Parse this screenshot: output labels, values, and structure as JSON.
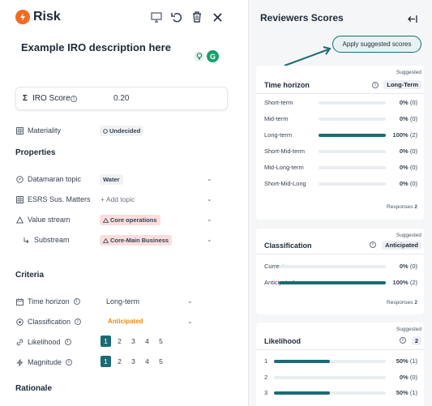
{
  "header": {
    "title": "Risk",
    "icons": [
      "monitor-icon",
      "undo-icon",
      "trash-icon",
      "close-icon"
    ]
  },
  "iro_description": "Example IRO description here",
  "iro_score": {
    "label": "IRO Score",
    "symbol": "Σ",
    "value": "0.20"
  },
  "materiality": {
    "label": "Materiality",
    "value": "Undecided"
  },
  "properties": {
    "title": "Properties",
    "datamaran_topic": {
      "label": "Datamaran topic",
      "value": "Water"
    },
    "esrs": {
      "label": "ESRS Sus. Matters",
      "value": "+ Add topic"
    },
    "value_stream": {
      "label": "Value stream",
      "value": "Core operations"
    },
    "substream": {
      "label": "Substream",
      "value": "Core-Main Business"
    }
  },
  "criteria": {
    "title": "Criteria",
    "time_horizon": {
      "label": "Time horizon",
      "value": "Long-term"
    },
    "classification": {
      "label": "Classification",
      "value": "Anticipated"
    },
    "likelihood": {
      "label": "Likelihood",
      "options": [
        "1",
        "2",
        "3",
        "4",
        "5"
      ],
      "selected": "1"
    },
    "magnitude": {
      "label": "Magnitude",
      "options": [
        "1",
        "2",
        "3",
        "4",
        "5"
      ],
      "selected": "1"
    }
  },
  "rationale_title": "Rationale",
  "reviewers": {
    "title": "Reviewers Scores",
    "apply_label": "Apply suggested scores",
    "suggested_label": "Suggested",
    "responses_label": "Responses",
    "cards": [
      {
        "title": "Time horizon",
        "suggested": "Long-Term",
        "responses": "2",
        "rows": [
          {
            "label": "Short-term",
            "pct": "0%",
            "count": "(0)",
            "fill": 0
          },
          {
            "label": "Mid-term",
            "pct": "0%",
            "count": "(0)",
            "fill": 0
          },
          {
            "label": "Long-term",
            "pct": "100%",
            "count": "(2)",
            "fill": 1
          },
          {
            "label": "Short-Mid-term",
            "pct": "0%",
            "count": "(0)",
            "fill": 0
          },
          {
            "label": "Mid-Long-term",
            "pct": "0%",
            "count": "(0)",
            "fill": 0
          },
          {
            "label": "Short-Mid-Long",
            "pct": "0%",
            "count": "(0)",
            "fill": 0
          }
        ]
      },
      {
        "title": "Classification",
        "suggested": "Anticipated",
        "responses": "2",
        "rows": [
          {
            "label": "Current",
            "pct": "0%",
            "count": "(0)",
            "fill": 0
          },
          {
            "label": "Anticipated",
            "pct": "100%",
            "count": "(2)",
            "fill": 1
          }
        ]
      },
      {
        "title": "Likelihood",
        "suggested": "2",
        "rows": [
          {
            "label": "1",
            "pct": "50%",
            "count": "(1)",
            "fill": 0.5
          },
          {
            "label": "2",
            "pct": "0%",
            "count": "(0)",
            "fill": 0
          },
          {
            "label": "3",
            "pct": "50%",
            "count": "(1)",
            "fill": 0.5
          }
        ]
      }
    ]
  },
  "colors": {
    "accent": "#1c6b73",
    "risk": "#f26b21",
    "anticipated": "#e88a14"
  }
}
